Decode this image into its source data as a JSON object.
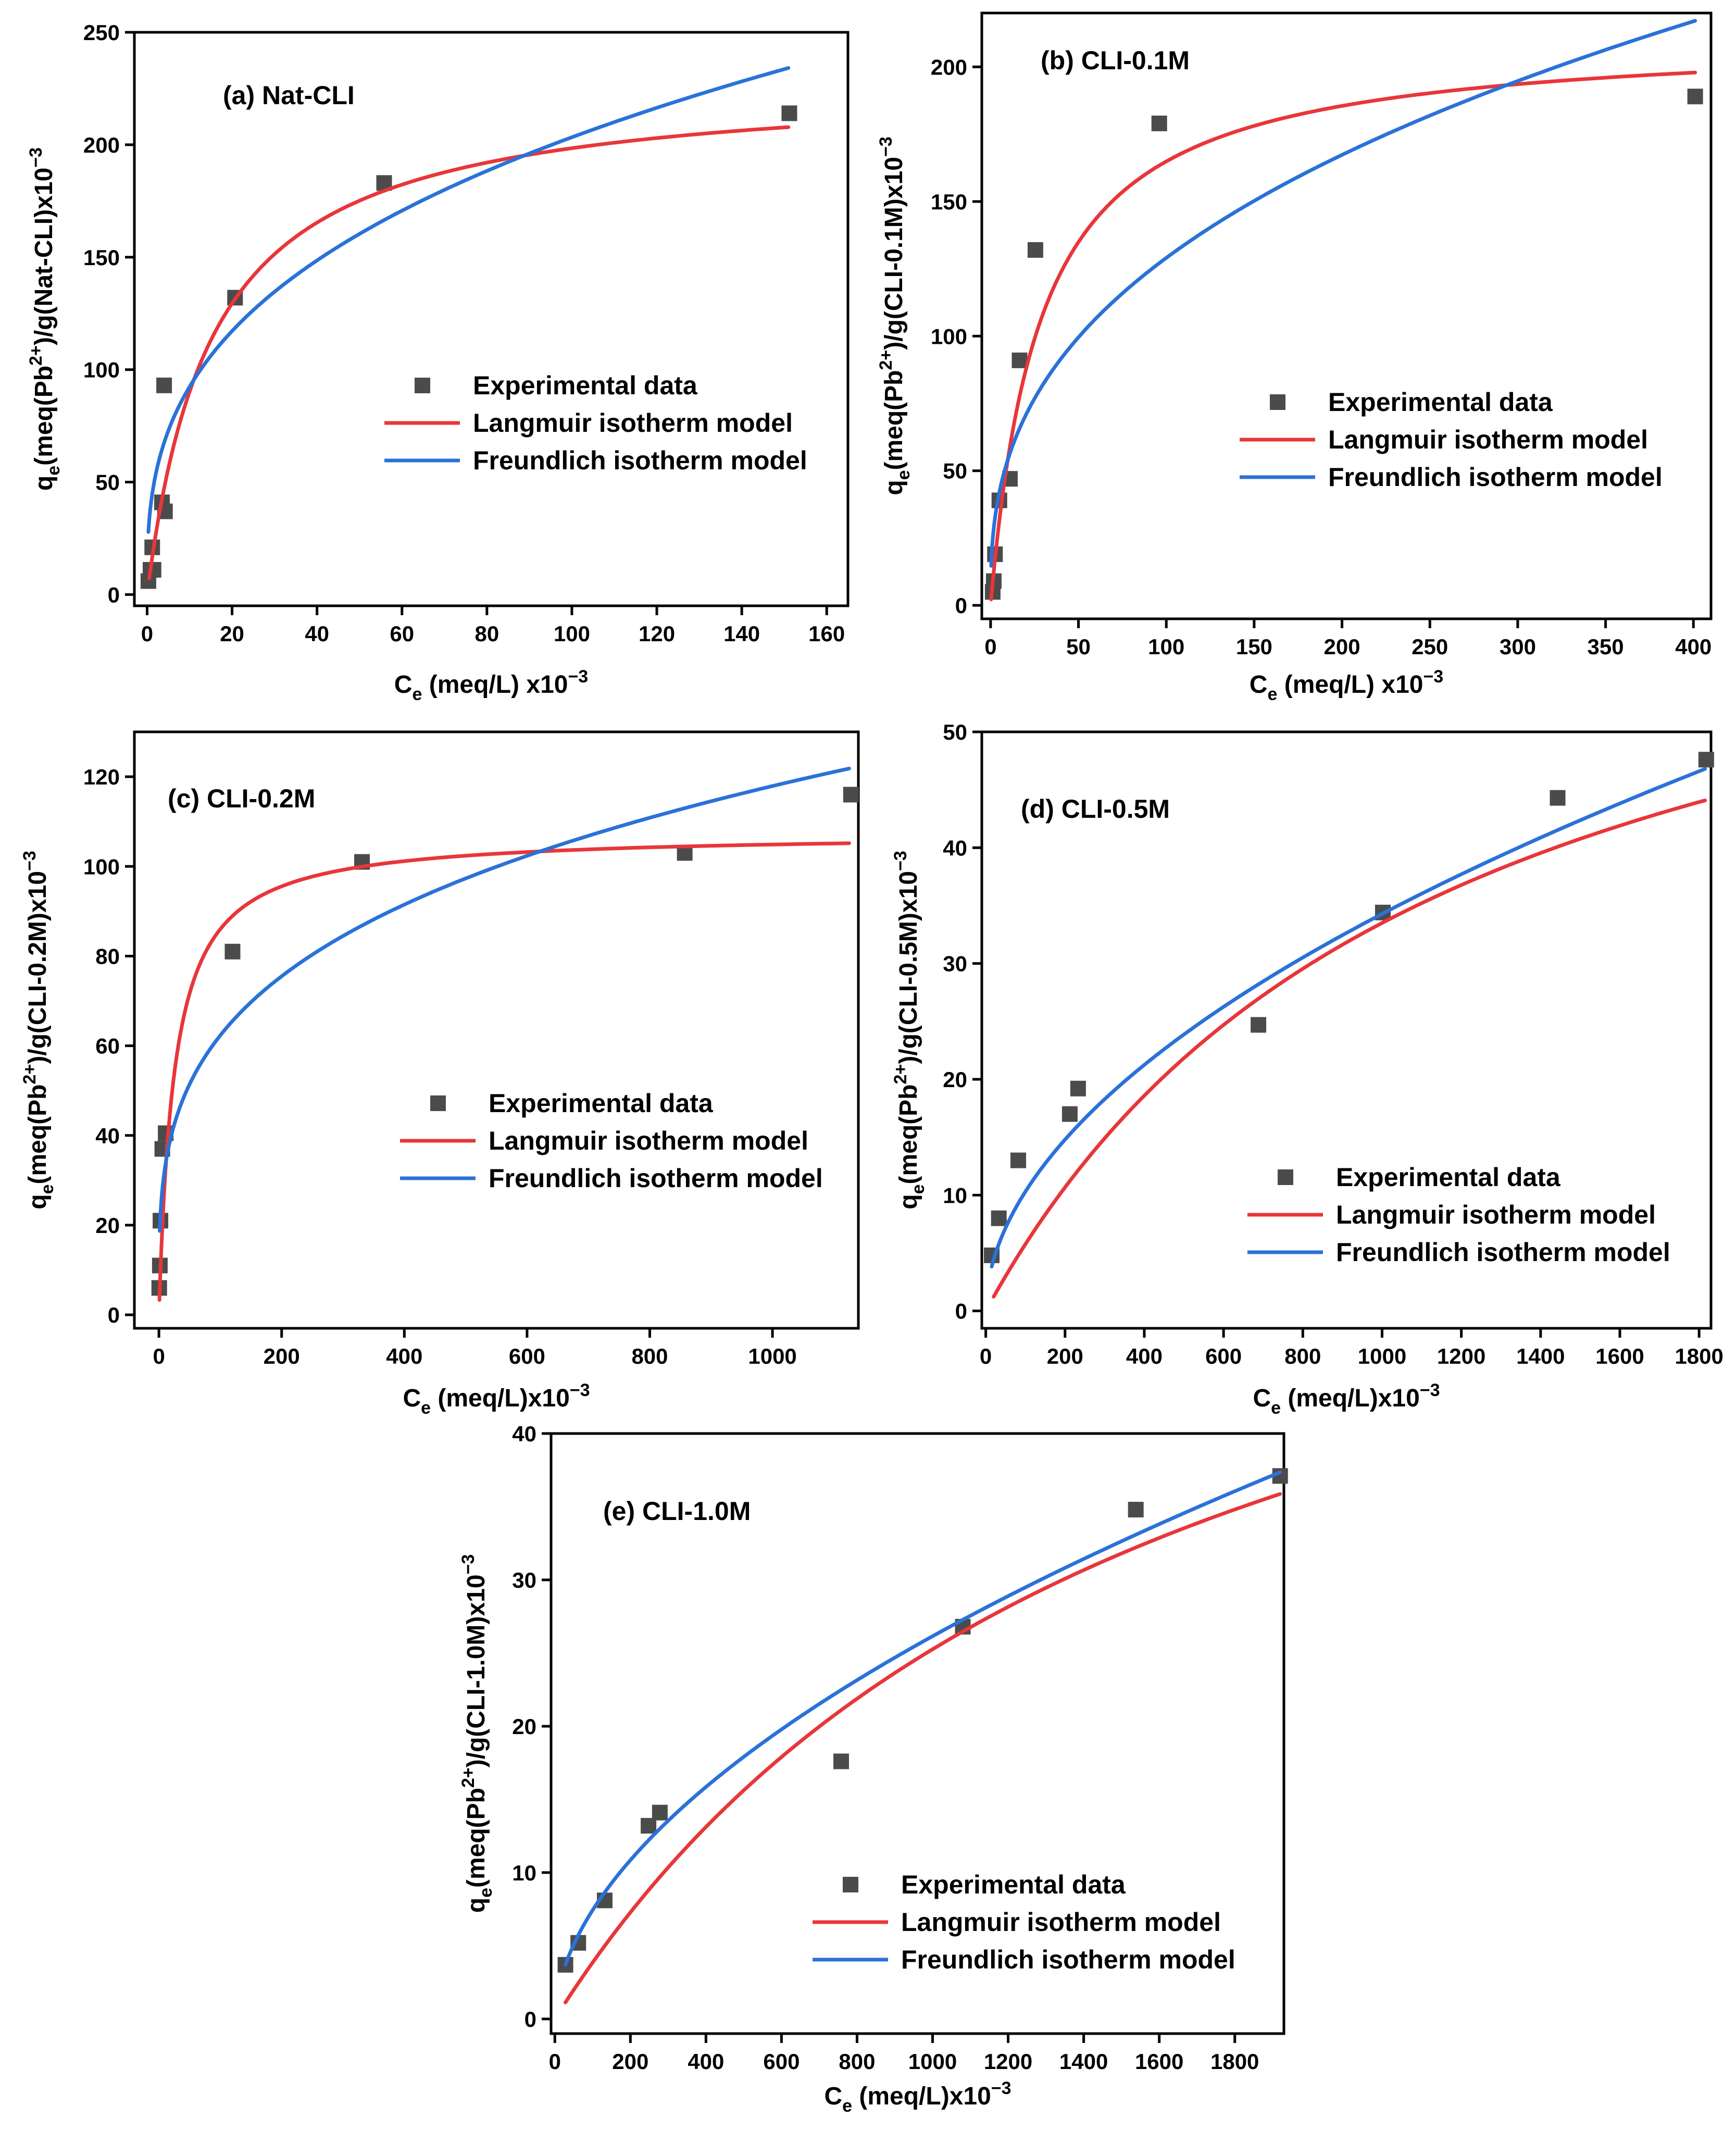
{
  "colors": {
    "experimental": "#4b4b4b",
    "langmuir": "#e8363a",
    "freundlich": "#2a72d8"
  },
  "chart_data": [
    {
      "type": "scatter",
      "panel": "a",
      "title": "(a) Nat-CLI",
      "xlabel": {
        "prefix": "C",
        "sub": "e",
        "mid": " (meq/L) x10",
        "sup": "−3",
        "suffix": ""
      },
      "ylabel": {
        "prefix": "q",
        "sub": "e",
        "mid": "(meq(Pb",
        "sup": "2+",
        "mid2": ")/g(Nat-CLI)x10",
        "sup2": "−3"
      },
      "xlim": [
        -3,
        165
      ],
      "ylim": [
        -5,
        250
      ],
      "xticks": [
        0,
        20,
        40,
        60,
        80,
        100,
        120,
        140,
        160
      ],
      "yticks": [
        0,
        50,
        100,
        150,
        200,
        250
      ],
      "legend": [
        "Experimental data",
        "Langmuir isotherm model",
        "Freundlich isotherm model"
      ],
      "legend_position": "center-right",
      "series": [
        {
          "name": "Experimental data",
          "kind": "points",
          "x": [
            0.3,
            0.8,
            1.2,
            1.5,
            3.5,
            4.2,
            4.0,
            20.7,
            55.8,
            151.2
          ],
          "y": [
            6,
            11,
            21,
            11,
            41,
            37,
            93,
            132,
            183,
            214
          ]
        },
        {
          "name": "Langmuir isotherm model",
          "kind": "curve",
          "model": "langmuir",
          "params": {
            "qm": 229,
            "K": 0.065
          },
          "x_range": [
            0.5,
            151
          ]
        },
        {
          "name": "Freundlich isotherm model",
          "kind": "curve",
          "model": "freundlich",
          "params": {
            "Kf": 42,
            "n": 2.92
          },
          "x_range": [
            0.3,
            151
          ]
        }
      ]
    },
    {
      "type": "scatter",
      "panel": "b",
      "title": "(b) CLI-0.1M",
      "xlabel": {
        "prefix": "C",
        "sub": "e",
        "mid": " (meq/L) x10",
        "sup": "−3",
        "suffix": ""
      },
      "ylabel": {
        "prefix": "q",
        "sub": "e",
        "mid": "(meq(Pb",
        "sup": "2+",
        "mid2": ")/g(CLI-0.1M)x10",
        "sup2": "−3"
      },
      "xlim": [
        -5,
        410
      ],
      "ylim": [
        -5,
        220
      ],
      "xticks": [
        0,
        50,
        100,
        150,
        200,
        250,
        300,
        350,
        400
      ],
      "yticks": [
        0,
        50,
        100,
        150,
        200
      ],
      "legend": [
        "Experimental data",
        "Langmuir isotherm model",
        "Freundlich isotherm model"
      ],
      "legend_position": "center-right",
      "series": [
        {
          "name": "Experimental data",
          "kind": "points",
          "x": [
            1.2,
            1.8,
            2.5,
            5.0,
            11.0,
            16.5,
            25.5,
            96.0,
            401.0
          ],
          "y": [
            5,
            9,
            19,
            39,
            47,
            91,
            132,
            179,
            189
          ]
        },
        {
          "name": "Langmuir isotherm model",
          "kind": "curve",
          "model": "langmuir",
          "params": {
            "qm": 212,
            "K": 0.035
          },
          "x_range": [
            0.3,
            401
          ]
        },
        {
          "name": "Freundlich isotherm model",
          "kind": "curve",
          "model": "freundlich",
          "params": {
            "Kf": 23,
            "n": 2.67
          },
          "x_range": [
            0.3,
            401
          ]
        }
      ]
    },
    {
      "type": "scatter",
      "panel": "c",
      "title": "(c) CLI-0.2M",
      "xlabel": {
        "prefix": "C",
        "sub": "e",
        "mid": " (meq/L)x10",
        "sup": "−3",
        "suffix": ""
      },
      "ylabel": {
        "prefix": "q",
        "sub": "e",
        "mid": "(meq(Pb",
        "sup": "2+",
        "mid2": ")/g(CLI-0.2M)x10",
        "sup2": "−3"
      },
      "xlim": [
        -40,
        1140
      ],
      "ylim": [
        -3,
        130
      ],
      "xticks": [
        0,
        200,
        400,
        600,
        800,
        1000
      ],
      "yticks": [
        0,
        20,
        40,
        60,
        80,
        100,
        120
      ],
      "legend": [
        "Experimental data",
        "Langmuir isotherm model",
        "Freundlich isotherm model"
      ],
      "legend_position": "center-right",
      "series": [
        {
          "name": "Experimental data",
          "kind": "points",
          "x": [
            0.5,
            1.5,
            2.5,
            5.5,
            11.0,
            120.0,
            331.0,
            857.0,
            1128.0
          ],
          "y": [
            6,
            11,
            21,
            37,
            40.5,
            81,
            101,
            103,
            116
          ]
        },
        {
          "name": "Langmuir isotherm model",
          "kind": "curve",
          "model": "langmuir",
          "params": {
            "qm": 107.5,
            "K": 0.04
          },
          "x_range": [
            0.8,
            1125
          ]
        },
        {
          "name": "Freundlich isotherm model",
          "kind": "curve",
          "model": "freundlich",
          "params": {
            "Kf": 17.4,
            "n": 3.61
          },
          "x_range": [
            1.3,
            1125
          ]
        }
      ]
    },
    {
      "type": "scatter",
      "panel": "d",
      "title": "(d) CLI-0.5M",
      "xlabel": {
        "prefix": "C",
        "sub": "e",
        "mid": " (meq/L)x10",
        "sup": "−3",
        "suffix": ""
      },
      "ylabel": {
        "prefix": "q",
        "sub": "e",
        "mid": "(meq(Pb",
        "sup": "2+",
        "mid2": ")/g(CLI-0.5M)x10",
        "sup2": "−3"
      },
      "xlim": [
        -10,
        1830
      ],
      "ylim": [
        -1.5,
        50
      ],
      "xticks": [
        0,
        200,
        400,
        600,
        800,
        1000,
        1200,
        1400,
        1600,
        1800
      ],
      "yticks": [
        0,
        10,
        20,
        30,
        40,
        50
      ],
      "legend": [
        "Experimental data",
        "Langmuir isotherm model",
        "Freundlich isotherm model"
      ],
      "legend_position": "bottom-right",
      "series": [
        {
          "name": "Experimental data",
          "kind": "points",
          "x": [
            15,
            33,
            82,
            212,
            233,
            688,
            1002,
            1443,
            1818
          ],
          "y": [
            4.8,
            8.0,
            13.0,
            17.0,
            19.2,
            24.7,
            34.4,
            44.3,
            47.6
          ]
        },
        {
          "name": "Langmuir isotherm model",
          "kind": "curve",
          "model": "langmuir",
          "params": {
            "qm": 72,
            "K": 0.00087
          },
          "x_range": [
            20,
            1815
          ]
        },
        {
          "name": "Freundlich isotherm model",
          "kind": "curve",
          "model": "freundlich",
          "params": {
            "Kf": 0.93,
            "n": 1.915
          },
          "x_range": [
            15,
            1815
          ]
        }
      ]
    },
    {
      "type": "scatter",
      "panel": "e",
      "title": "(e) CLI-1.0M",
      "xlabel": {
        "prefix": "C",
        "sub": "e",
        "mid": " (meq/L)x10",
        "sup": "−3",
        "suffix": ""
      },
      "ylabel": {
        "prefix": "q",
        "sub": "e",
        "mid": "(meq(Pb",
        "sup": "2+",
        "mid2": ")/g(CLI-1.0M)x10",
        "sup2": "−3"
      },
      "xlim": [
        -10,
        1930
      ],
      "ylim": [
        -1,
        40
      ],
      "xticks": [
        0,
        200,
        400,
        600,
        800,
        1000,
        1200,
        1400,
        1600,
        1800
      ],
      "yticks": [
        0,
        10,
        20,
        30,
        40
      ],
      "legend": [
        "Experimental data",
        "Langmuir isotherm model",
        "Freundlich isotherm model"
      ],
      "legend_position": "bottom-right",
      "series": [
        {
          "name": "Experimental data",
          "kind": "points",
          "x": [
            28,
            62,
            132,
            248,
            278,
            758,
            1080,
            1538,
            1920
          ],
          "y": [
            3.7,
            5.2,
            8.1,
            13.2,
            14.1,
            17.6,
            26.8,
            34.8,
            37.1
          ]
        },
        {
          "name": "Langmuir isotherm model",
          "kind": "curve",
          "model": "langmuir",
          "params": {
            "qm": 66,
            "K": 0.00062
          },
          "x_range": [
            28,
            1920
          ]
        },
        {
          "name": "Freundlich isotherm model",
          "kind": "curve",
          "model": "freundlich",
          "params": {
            "Kf": 0.6,
            "n": 1.83
          },
          "x_range": [
            28,
            1920
          ]
        }
      ]
    }
  ]
}
